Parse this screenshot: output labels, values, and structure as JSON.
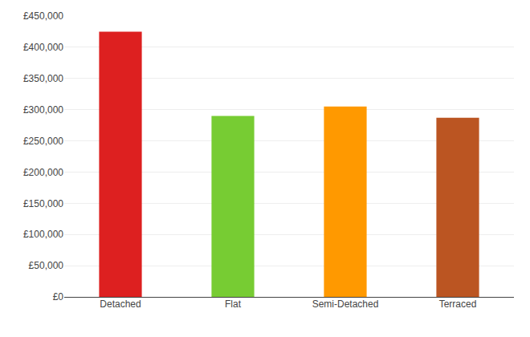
{
  "chart_data": {
    "type": "bar",
    "categories": [
      "Detached",
      "Flat",
      "Semi-Detached",
      "Terraced"
    ],
    "values": [
      425000,
      290000,
      305000,
      287000
    ],
    "colors": [
      "#dd2020",
      "#77cc33",
      "#ff9900",
      "#bb5522"
    ],
    "ylim": [
      0,
      450000
    ],
    "yticks": [
      {
        "value": 0,
        "label": "£0"
      },
      {
        "value": 50000,
        "label": "£50,000"
      },
      {
        "value": 100000,
        "label": "£100,000"
      },
      {
        "value": 150000,
        "label": "£150,000"
      },
      {
        "value": 200000,
        "label": "£200,000"
      },
      {
        "value": 250000,
        "label": "£250,000"
      },
      {
        "value": 300000,
        "label": "£300,000"
      },
      {
        "value": 350000,
        "label": "£350,000"
      },
      {
        "value": 400000,
        "label": "£400,000"
      },
      {
        "value": 450000,
        "label": "£450,000"
      }
    ],
    "grid": true
  }
}
